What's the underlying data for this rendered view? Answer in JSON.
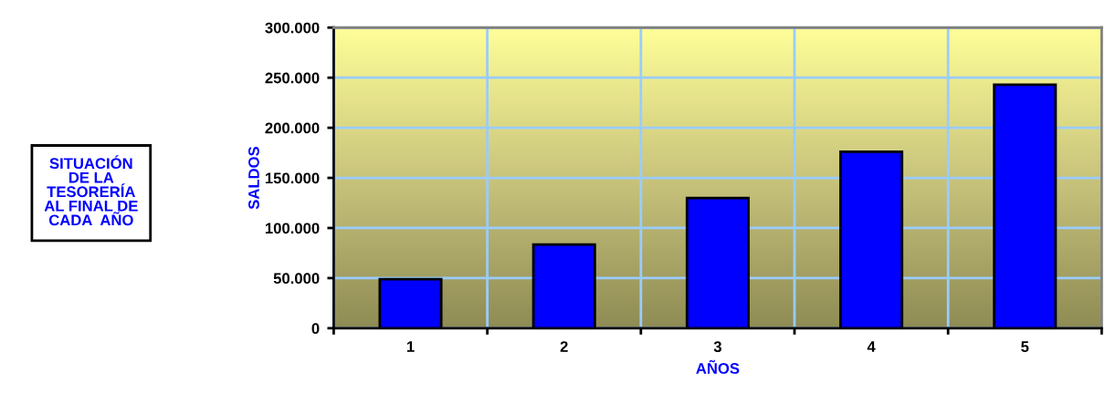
{
  "chart_data": {
    "type": "bar",
    "title": "SITUACIÓN\nDE LA\nTESORERÍA\nAL FINAL DE\nCADA  AÑO",
    "xlabel": "AÑOS",
    "ylabel": "SALDOS",
    "categories": [
      "1",
      "2",
      "3",
      "4",
      "5"
    ],
    "values": [
      49000,
      83500,
      130000,
      176000,
      243000
    ],
    "color": "#0000ff",
    "ylim": [
      0,
      300000
    ],
    "yticks": [
      {
        "value": 0,
        "label": "0"
      },
      {
        "value": 50000,
        "label": "50.000"
      },
      {
        "value": 100000,
        "label": "100.000"
      },
      {
        "value": 150000,
        "label": "150.000"
      },
      {
        "value": 200000,
        "label": "200.000"
      },
      {
        "value": 250000,
        "label": "250.000"
      },
      {
        "value": 300000,
        "label": "300.000"
      }
    ],
    "grid": true
  }
}
